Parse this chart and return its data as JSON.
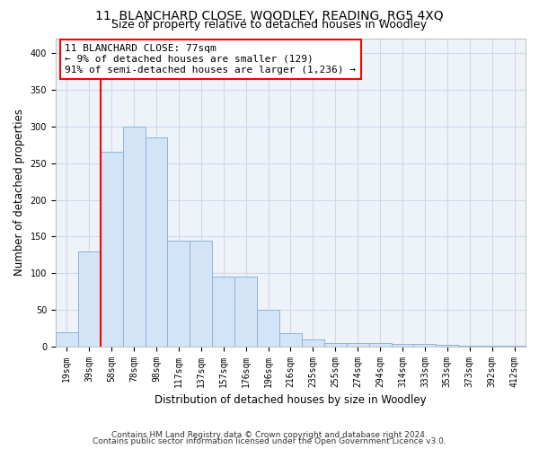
{
  "title": "11, BLANCHARD CLOSE, WOODLEY, READING, RG5 4XQ",
  "subtitle": "Size of property relative to detached houses in Woodley",
  "xlabel": "Distribution of detached houses by size in Woodley",
  "ylabel": "Number of detached properties",
  "categories": [
    "19sqm",
    "39sqm",
    "58sqm",
    "78sqm",
    "98sqm",
    "117sqm",
    "137sqm",
    "157sqm",
    "176sqm",
    "196sqm",
    "216sqm",
    "235sqm",
    "255sqm",
    "274sqm",
    "294sqm",
    "314sqm",
    "333sqm",
    "353sqm",
    "373sqm",
    "392sqm",
    "412sqm"
  ],
  "values": [
    20,
    130,
    265,
    300,
    285,
    145,
    145,
    95,
    95,
    50,
    18,
    10,
    5,
    5,
    5,
    4,
    4,
    3,
    2,
    2,
    2
  ],
  "bar_color": "#d4e4f7",
  "bar_edge_color": "#8db4d8",
  "annotation_line1": "11 BLANCHARD CLOSE: 77sqm",
  "annotation_line2": "← 9% of detached houses are smaller (129)",
  "annotation_line3": "91% of semi-detached houses are larger (1,236) →",
  "annotation_box_color": "white",
  "annotation_box_edge_color": "red",
  "vline_color": "red",
  "vline_x": 1.5,
  "ylim": [
    0,
    420
  ],
  "yticks": [
    0,
    50,
    100,
    150,
    200,
    250,
    300,
    350,
    400
  ],
  "footnote1": "Contains HM Land Registry data © Crown copyright and database right 2024.",
  "footnote2": "Contains public sector information licensed under the Open Government Licence v3.0.",
  "title_fontsize": 10,
  "subtitle_fontsize": 9,
  "axis_label_fontsize": 8.5,
  "tick_fontsize": 7,
  "annotation_fontsize": 8,
  "footnote_fontsize": 6.5,
  "grid_color": "#d0d8e8",
  "bg_color": "#eef3fa"
}
